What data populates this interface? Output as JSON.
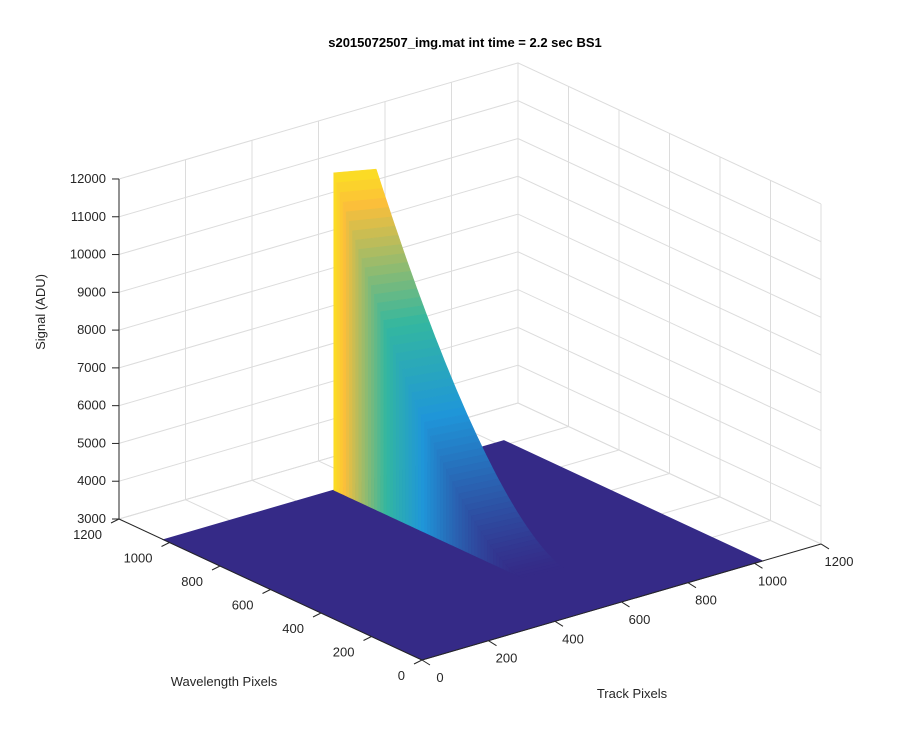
{
  "chart_data": {
    "type": "surface",
    "title": "s2015072507_img.mat int time = 2.2 sec   BS1",
    "xlabel": "Track Pixels",
    "ylabel": "Wavelength Pixels",
    "zlabel": "Signal (ADU)",
    "xlim": [
      0,
      1200
    ],
    "ylim": [
      0,
      1200
    ],
    "zlim": [
      3000,
      12000
    ],
    "x_ticks": [
      0,
      200,
      400,
      600,
      800,
      1000,
      1200
    ],
    "y_ticks": [
      0,
      200,
      400,
      600,
      800,
      1000,
      1200
    ],
    "z_ticks": [
      3000,
      4000,
      5000,
      6000,
      7000,
      8000,
      9000,
      10000,
      11000,
      12000
    ],
    "grid": true,
    "colormap": "parula",
    "surface_extent": {
      "track": [
        0,
        1024
      ],
      "wavelength": [
        0,
        1024
      ]
    },
    "background_level": 3000,
    "peak": {
      "track_start": 512,
      "track_end": 640,
      "wavelength_start": 1024,
      "wavelength_end": 280,
      "signal_at_wavelength_start": 11400,
      "signal_at_wavelength_end": 3000
    },
    "colors": {
      "low": "#352a87",
      "mid": "#1f96d9",
      "teal": "#33b7a0",
      "high": "#fcbf39",
      "top": "#f9fb0e"
    }
  }
}
